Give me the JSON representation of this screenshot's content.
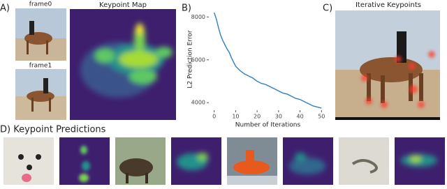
{
  "panels": {
    "a": {
      "label": "A)",
      "frame0": "frame0",
      "frame1": "frame1",
      "map_title": "Keypoint Map"
    },
    "b": {
      "label": "B)"
    },
    "c": {
      "label": "C)",
      "title": "Iterative Keypoints"
    },
    "d": {
      "label": "D) Keypoint Predictions"
    }
  },
  "chart_data": {
    "type": "line",
    "x_label": "Number of Iterations",
    "y_label": "L2 Prediction Error",
    "x": [
      0,
      1,
      2,
      3,
      4,
      5,
      6,
      7,
      8,
      9,
      10,
      12,
      14,
      16,
      18,
      20,
      22,
      24,
      26,
      28,
      30,
      32,
      34,
      36,
      38,
      40,
      42,
      44,
      46,
      48,
      50
    ],
    "series": [
      {
        "color": "#2f7fbf",
        "values": [
          8200,
          7900,
          7500,
          7150,
          6900,
          6700,
          6500,
          6350,
          6100,
          5900,
          5700,
          5500,
          5350,
          5250,
          5150,
          5000,
          4900,
          4850,
          4750,
          4650,
          4550,
          4450,
          4400,
          4300,
          4200,
          4150,
          4050,
          3950,
          3850,
          3800,
          3750
        ]
      }
    ],
    "xlim": [
      -2.5,
      52.5
    ],
    "ylim": [
      3650,
      8400
    ],
    "xticks": [
      0,
      10,
      20,
      30,
      40,
      50
    ],
    "yticks": [
      4000,
      6000,
      8000
    ]
  }
}
